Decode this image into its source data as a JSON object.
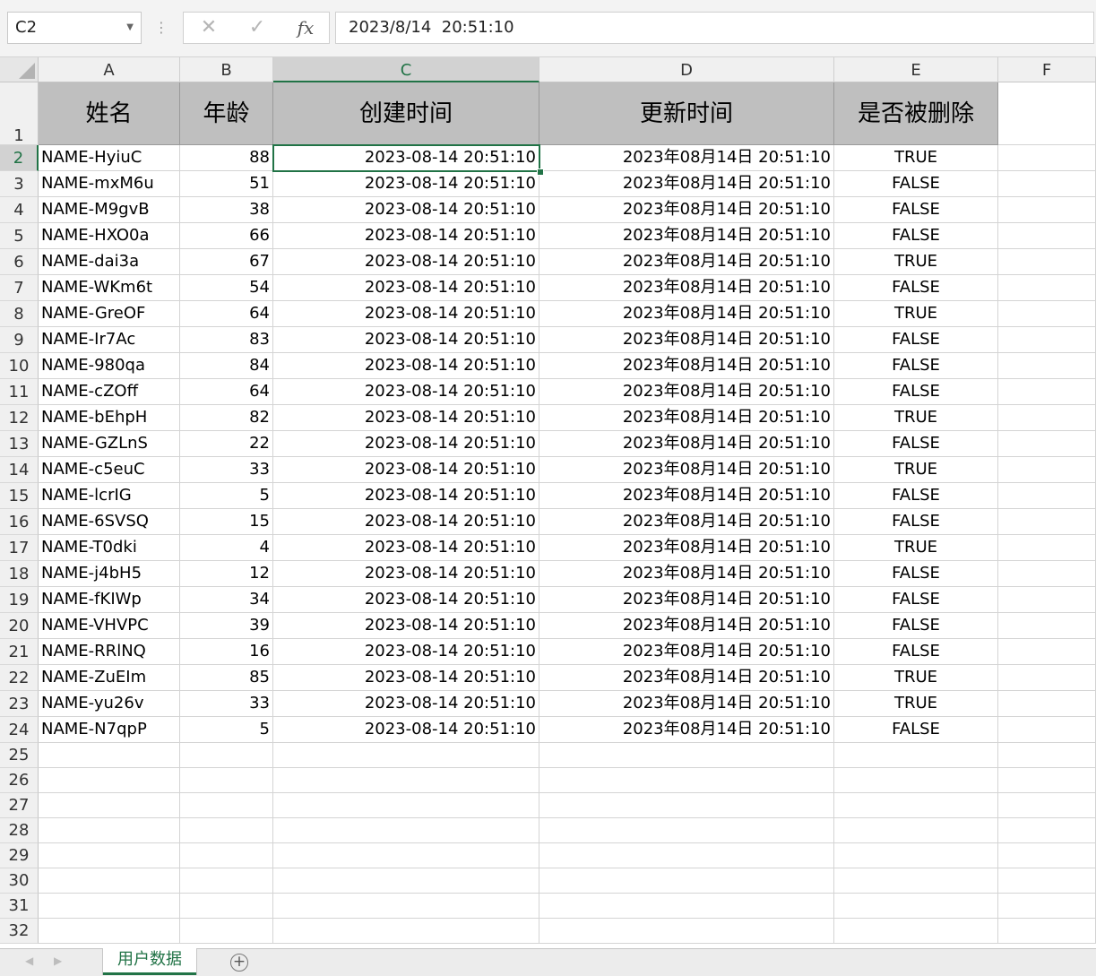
{
  "formula_bar": {
    "name_box": "C2",
    "cancel_icon": "✕",
    "enter_icon": "✓",
    "fx_label": "fx",
    "formula_value": "2023/8/14  20:51:10"
  },
  "columns": [
    "A",
    "B",
    "C",
    "D",
    "E",
    "F"
  ],
  "selected_column": "C",
  "selected_row": 2,
  "header_row": [
    "姓名",
    "年龄",
    "创建时间",
    "更新时间",
    "是否被删除"
  ],
  "data_rows": [
    [
      "NAME-HyiuC",
      "88",
      "2023-08-14 20:51:10",
      "2023年08月14日 20:51:10",
      "TRUE"
    ],
    [
      "NAME-mxM6u",
      "51",
      "2023-08-14 20:51:10",
      "2023年08月14日 20:51:10",
      "FALSE"
    ],
    [
      "NAME-M9gvB",
      "38",
      "2023-08-14 20:51:10",
      "2023年08月14日 20:51:10",
      "FALSE"
    ],
    [
      "NAME-HXO0a",
      "66",
      "2023-08-14 20:51:10",
      "2023年08月14日 20:51:10",
      "FALSE"
    ],
    [
      "NAME-dai3a",
      "67",
      "2023-08-14 20:51:10",
      "2023年08月14日 20:51:10",
      "TRUE"
    ],
    [
      "NAME-WKm6t",
      "54",
      "2023-08-14 20:51:10",
      "2023年08月14日 20:51:10",
      "FALSE"
    ],
    [
      "NAME-GreOF",
      "64",
      "2023-08-14 20:51:10",
      "2023年08月14日 20:51:10",
      "TRUE"
    ],
    [
      "NAME-Ir7Ac",
      "83",
      "2023-08-14 20:51:10",
      "2023年08月14日 20:51:10",
      "FALSE"
    ],
    [
      "NAME-980qa",
      "84",
      "2023-08-14 20:51:10",
      "2023年08月14日 20:51:10",
      "FALSE"
    ],
    [
      "NAME-cZOff",
      "64",
      "2023-08-14 20:51:10",
      "2023年08月14日 20:51:10",
      "FALSE"
    ],
    [
      "NAME-bEhpH",
      "82",
      "2023-08-14 20:51:10",
      "2023年08月14日 20:51:10",
      "TRUE"
    ],
    [
      "NAME-GZLnS",
      "22",
      "2023-08-14 20:51:10",
      "2023年08月14日 20:51:10",
      "FALSE"
    ],
    [
      "NAME-c5euC",
      "33",
      "2023-08-14 20:51:10",
      "2023年08月14日 20:51:10",
      "TRUE"
    ],
    [
      "NAME-lcrIG",
      "5",
      "2023-08-14 20:51:10",
      "2023年08月14日 20:51:10",
      "FALSE"
    ],
    [
      "NAME-6SVSQ",
      "15",
      "2023-08-14 20:51:10",
      "2023年08月14日 20:51:10",
      "FALSE"
    ],
    [
      "NAME-T0dki",
      "4",
      "2023-08-14 20:51:10",
      "2023年08月14日 20:51:10",
      "TRUE"
    ],
    [
      "NAME-j4bH5",
      "12",
      "2023-08-14 20:51:10",
      "2023年08月14日 20:51:10",
      "FALSE"
    ],
    [
      "NAME-fKIWp",
      "34",
      "2023-08-14 20:51:10",
      "2023年08月14日 20:51:10",
      "FALSE"
    ],
    [
      "NAME-VHVPC",
      "39",
      "2023-08-14 20:51:10",
      "2023年08月14日 20:51:10",
      "FALSE"
    ],
    [
      "NAME-RRlNQ",
      "16",
      "2023-08-14 20:51:10",
      "2023年08月14日 20:51:10",
      "FALSE"
    ],
    [
      "NAME-ZuEIm",
      "85",
      "2023-08-14 20:51:10",
      "2023年08月14日 20:51:10",
      "TRUE"
    ],
    [
      "NAME-yu26v",
      "33",
      "2023-08-14 20:51:10",
      "2023年08月14日 20:51:10",
      "TRUE"
    ],
    [
      "NAME-N7qpP",
      "5",
      "2023-08-14 20:51:10",
      "2023年08月14日 20:51:10",
      "FALSE"
    ]
  ],
  "row_numbers": [
    "1",
    "2",
    "3",
    "4",
    "5",
    "6",
    "7",
    "8",
    "9",
    "10",
    "11",
    "12",
    "13",
    "14",
    "15",
    "16",
    "17",
    "18",
    "19",
    "20",
    "21",
    "22",
    "23",
    "24",
    "25",
    "26",
    "27",
    "28",
    "29",
    "30",
    "31",
    "32"
  ],
  "sheet_tabs": [
    {
      "label": "用户数据",
      "active": true
    }
  ],
  "colors": {
    "accent": "#217346",
    "header_fill": "#bfbfbf"
  }
}
